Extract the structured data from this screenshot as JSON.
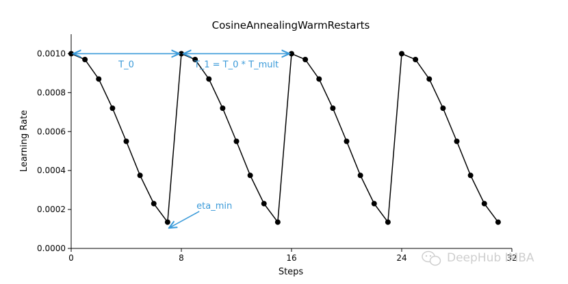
{
  "chart_data": {
    "type": "line",
    "title": "CosineAnnealingWarmRestarts",
    "xlabel": "Steps",
    "ylabel": "Learning Rate",
    "xlim": [
      0,
      32
    ],
    "ylim": [
      0,
      0.0011
    ],
    "x_ticks": [
      "0",
      "8",
      "16",
      "24",
      "32"
    ],
    "y_ticks": [
      "0.0000",
      "0.0002",
      "0.0004",
      "0.0006",
      "0.0008",
      "0.0010"
    ],
    "grid": false,
    "series": [
      {
        "color": "#000000",
        "marker": "circle",
        "x": [
          0,
          1,
          2,
          3,
          4,
          5,
          6,
          7,
          8,
          9,
          10,
          11,
          12,
          13,
          14,
          15,
          16,
          17,
          18,
          19,
          20,
          21,
          22,
          23,
          24,
          25,
          26,
          27,
          28,
          29,
          30,
          31
        ],
        "y": [
          0.001,
          0.00097,
          0.00087,
          0.00072,
          0.00055,
          0.000375,
          0.00023,
          0.000135,
          0.001,
          0.00097,
          0.00087,
          0.00072,
          0.00055,
          0.000375,
          0.00023,
          0.000135,
          0.001,
          0.00097,
          0.00087,
          0.00072,
          0.00055,
          0.000375,
          0.00023,
          0.000135,
          0.001,
          0.00097,
          0.00087,
          0.00072,
          0.00055,
          0.000375,
          0.00023,
          0.000135
        ]
      }
    ],
    "annotations": [
      {
        "text": "T_0",
        "color": "#3a9ad9",
        "x_from": 0,
        "x_to": 8,
        "y": 0.001
      },
      {
        "text": "T_1 = T_0 * T_mult",
        "color": "#3a9ad9",
        "x_from": 8,
        "x_to": 16,
        "y": 0.001
      },
      {
        "text": "eta_min",
        "color": "#3a9ad9",
        "x_from": 9.3,
        "y_from": 0.00019,
        "x_to": 7.1,
        "y_to": 0.000105
      }
    ]
  },
  "watermark": {
    "text": "DeepHub IMBA",
    "icon": "wechat-icon"
  }
}
